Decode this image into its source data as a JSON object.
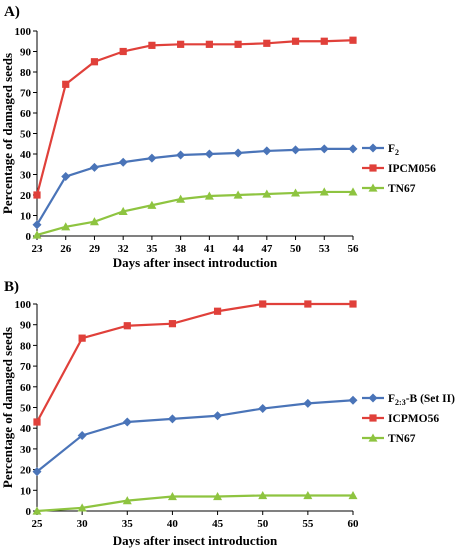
{
  "chart_data": [
    {
      "type": "line",
      "panel_label": "A)",
      "xlabel": "Days after insect introduction",
      "ylabel": "Percentage of damaged seeds",
      "x": [
        23,
        26,
        29,
        32,
        35,
        38,
        41,
        44,
        47,
        50,
        53,
        56
      ],
      "x_tick_labels": [
        "23",
        "26",
        "29",
        "32",
        "35",
        "38",
        "41",
        "44",
        "47",
        "50",
        "53",
        "56"
      ],
      "ylim": [
        0,
        100
      ],
      "y_ticks": [
        0,
        10,
        20,
        30,
        40,
        50,
        60,
        70,
        80,
        90,
        100
      ],
      "grid": false,
      "legend_position": "right",
      "series": [
        {
          "name": "F",
          "name_sub": "2",
          "color": "#4a74b8",
          "marker": "diamond",
          "values": [
            5.5,
            29,
            33.5,
            36,
            38,
            39.5,
            40,
            40.5,
            41.5,
            42,
            42.5,
            42.5
          ]
        },
        {
          "name": "IPCM056",
          "name_sub": "",
          "color": "#e0403a",
          "marker": "square",
          "values": [
            20,
            74,
            85,
            90,
            93,
            93.5,
            93.5,
            93.5,
            94,
            95,
            95,
            95.5
          ]
        },
        {
          "name": "TN67",
          "name_sub": "",
          "color": "#8ec440",
          "marker": "triangle",
          "values": [
            0.5,
            4.5,
            7,
            12,
            15,
            18,
            19.5,
            20,
            20.5,
            21,
            21.5,
            21.5
          ]
        }
      ]
    },
    {
      "type": "line",
      "panel_label": "B)",
      "xlabel": "Days after insect introduction",
      "ylabel": "Percentage of damaged seeds",
      "x": [
        25,
        30,
        35,
        40,
        45,
        50,
        55,
        60
      ],
      "x_tick_labels": [
        "25",
        "30",
        "35",
        "40",
        "45",
        "50",
        "55",
        "60"
      ],
      "ylim": [
        0,
        100
      ],
      "y_ticks": [
        0,
        10,
        20,
        30,
        40,
        50,
        60,
        70,
        80,
        90,
        100
      ],
      "grid": false,
      "legend_position": "right",
      "series": [
        {
          "name": "F",
          "name_sub": "2:3",
          "name_rest": "-B (Set II)",
          "color": "#4a74b8",
          "marker": "diamond",
          "values": [
            19,
            36.5,
            43,
            44.5,
            46,
            49.5,
            52,
            53.5
          ]
        },
        {
          "name": "ICPMO56",
          "name_sub": "",
          "name_rest": "",
          "color": "#e0403a",
          "marker": "square",
          "values": [
            43,
            83.5,
            89.5,
            90.5,
            96.5,
            100,
            100,
            100
          ]
        },
        {
          "name": "TN67",
          "name_sub": "",
          "name_rest": "",
          "color": "#8ec440",
          "marker": "triangle",
          "values": [
            0,
            1.5,
            5,
            7,
            7,
            7.5,
            7.5,
            7.5
          ]
        }
      ]
    }
  ]
}
